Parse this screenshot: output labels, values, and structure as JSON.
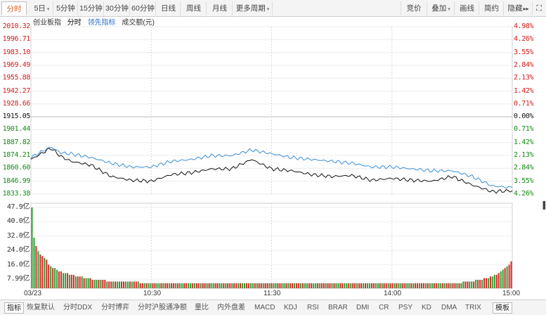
{
  "toolbar": {
    "tabs": [
      {
        "label": "分时",
        "active": true
      },
      {
        "label": "5日",
        "caret": true
      },
      {
        "label": "5分钟"
      },
      {
        "label": "15分钟"
      },
      {
        "label": "30分钟"
      },
      {
        "label": "60分钟"
      },
      {
        "label": "日线"
      },
      {
        "label": "周线"
      },
      {
        "label": "月线"
      },
      {
        "label": "更多周期",
        "caret": true
      }
    ],
    "right": [
      {
        "label": "竞价"
      },
      {
        "label": "叠加",
        "caret": true
      },
      {
        "label": "画线"
      },
      {
        "label": "简约"
      },
      {
        "label": "隐藏"
      }
    ],
    "hide_arrows": "▸▸",
    "expand_icon": "⛶"
  },
  "subhead": {
    "index_name": "创业板指",
    "view": "分时",
    "lead_indicator": "领先指标",
    "volume_label": "成交额(元)"
  },
  "price_axis": {
    "labels": [
      "2010.32",
      "1996.71",
      "1983.10",
      "1969.49",
      "1955.88",
      "1942.27",
      "1928.66",
      "1915.05",
      "1901.44",
      "1887.82",
      "1874.21",
      "1860.60",
      "1846.99",
      "1833.38"
    ],
    "percents": [
      "4.98%",
      "4.26%",
      "3.55%",
      "2.84%",
      "2.13%",
      "1.42%",
      "0.71%",
      "0.00%",
      "0.71%",
      "1.42%",
      "2.13%",
      "2.84%",
      "3.55%",
      "4.26%"
    ],
    "prev_close": 1915.05
  },
  "volume_axis": {
    "labels": [
      "47.9亿",
      "40.0亿",
      "32.0亿",
      "24.0亿",
      "16.0亿",
      "7.99亿"
    ]
  },
  "time_axis": {
    "labels": [
      "03/23",
      "10:30",
      "11:30",
      "14:00",
      "15:00"
    ]
  },
  "chart_data": {
    "type": "line",
    "title": "",
    "series": [
      {
        "name": "",
        "color": "#111111",
        "x": [
          0,
          5,
          10,
          15,
          20,
          25,
          30,
          40,
          50,
          60,
          70,
          80,
          90,
          100,
          110,
          120,
          130,
          140,
          150,
          160,
          170,
          180,
          190,
          200,
          210,
          220,
          230,
          240
        ],
        "values": [
          1870,
          1876,
          1882,
          1873,
          1868,
          1866,
          1864,
          1852,
          1848,
          1847,
          1854,
          1856,
          1860,
          1860,
          1870,
          1860,
          1858,
          1854,
          1852,
          1853,
          1848,
          1850,
          1848,
          1847,
          1852,
          1843,
          1836,
          1837
        ]
      },
      {
        "name": "",
        "color": "#3a8fd6",
        "x": [
          0,
          5,
          10,
          15,
          20,
          25,
          30,
          40,
          50,
          60,
          70,
          80,
          90,
          100,
          110,
          120,
          130,
          140,
          150,
          160,
          170,
          180,
          190,
          200,
          210,
          220,
          230,
          240
        ],
        "values": [
          1872,
          1878,
          1883,
          1877,
          1876,
          1874,
          1872,
          1866,
          1862,
          1862,
          1868,
          1870,
          1874,
          1874,
          1880,
          1876,
          1872,
          1870,
          1868,
          1866,
          1862,
          1862,
          1860,
          1858,
          1858,
          1852,
          1842,
          1840
        ]
      }
    ],
    "ylim": [
      1833.38,
      2010.32
    ],
    "xlim": [
      0,
      240
    ],
    "volume": {
      "ylim": [
        0,
        47.9
      ],
      "values": [
        47.9,
        30,
        25,
        22,
        20,
        19,
        18,
        17,
        14,
        13,
        12,
        12,
        11,
        10,
        10,
        9,
        9,
        9,
        8,
        8,
        8,
        7,
        7,
        7,
        7,
        6,
        6,
        6,
        6,
        5,
        5,
        5,
        5,
        5,
        5,
        5,
        4,
        4,
        4,
        4,
        4,
        4,
        4,
        4,
        4,
        4,
        4,
        4,
        4,
        4,
        4,
        4,
        3,
        3,
        3,
        3,
        3,
        3,
        3,
        3,
        3,
        3,
        3,
        3,
        3,
        3,
        3,
        3,
        3,
        3,
        3,
        3,
        3,
        3,
        3,
        3,
        3,
        3,
        3,
        3,
        3,
        3,
        3,
        3,
        3,
        3,
        3,
        3,
        3,
        3,
        3,
        3,
        3,
        3,
        3,
        3,
        3,
        3,
        3,
        3,
        3,
        3,
        3,
        3,
        3,
        3,
        3,
        3,
        3,
        3,
        3,
        3,
        3,
        3,
        3,
        3,
        3,
        3,
        3,
        3,
        3,
        3,
        3,
        3,
        3,
        3,
        3,
        3,
        3,
        3,
        3,
        3,
        3,
        3,
        3,
        3,
        3,
        3,
        3,
        3,
        3,
        3,
        3,
        3,
        3,
        3,
        3,
        3,
        3,
        3,
        3,
        3,
        3,
        3,
        3,
        3,
        3,
        3,
        3,
        3,
        3,
        3,
        3,
        3,
        3,
        3,
        3,
        3,
        3,
        3,
        3,
        3,
        3,
        3,
        3,
        3,
        3,
        3,
        3,
        3,
        3,
        3,
        3,
        3,
        3,
        3,
        3,
        3,
        3,
        3,
        3,
        3,
        3,
        3,
        3,
        3,
        3,
        3,
        3,
        3,
        3,
        3,
        3,
        3,
        3,
        3,
        3,
        4,
        4,
        4,
        4,
        4,
        4,
        5,
        5,
        5,
        5,
        6,
        6,
        6,
        7,
        7,
        8,
        8,
        9,
        10,
        11,
        12,
        13,
        14,
        16
      ]
    },
    "grid": true
  },
  "bottombar": {
    "items": [
      {
        "label": "指标",
        "active": true
      },
      {
        "label": "恢复默认"
      },
      {
        "label": "分时DDX"
      },
      {
        "label": "分时博弈"
      },
      {
        "label": "分时沪股通净额"
      },
      {
        "label": "量比"
      },
      {
        "label": "内外盘差"
      },
      {
        "label": "MACD"
      },
      {
        "label": "KDJ"
      },
      {
        "label": "RSI"
      },
      {
        "label": "BRAR"
      },
      {
        "label": "DMI"
      },
      {
        "label": "CR"
      },
      {
        "label": "PSY"
      },
      {
        "label": "KD"
      },
      {
        "label": "DMA"
      },
      {
        "label": "TRIX"
      },
      {
        "label": "模板",
        "active": true
      }
    ]
  }
}
